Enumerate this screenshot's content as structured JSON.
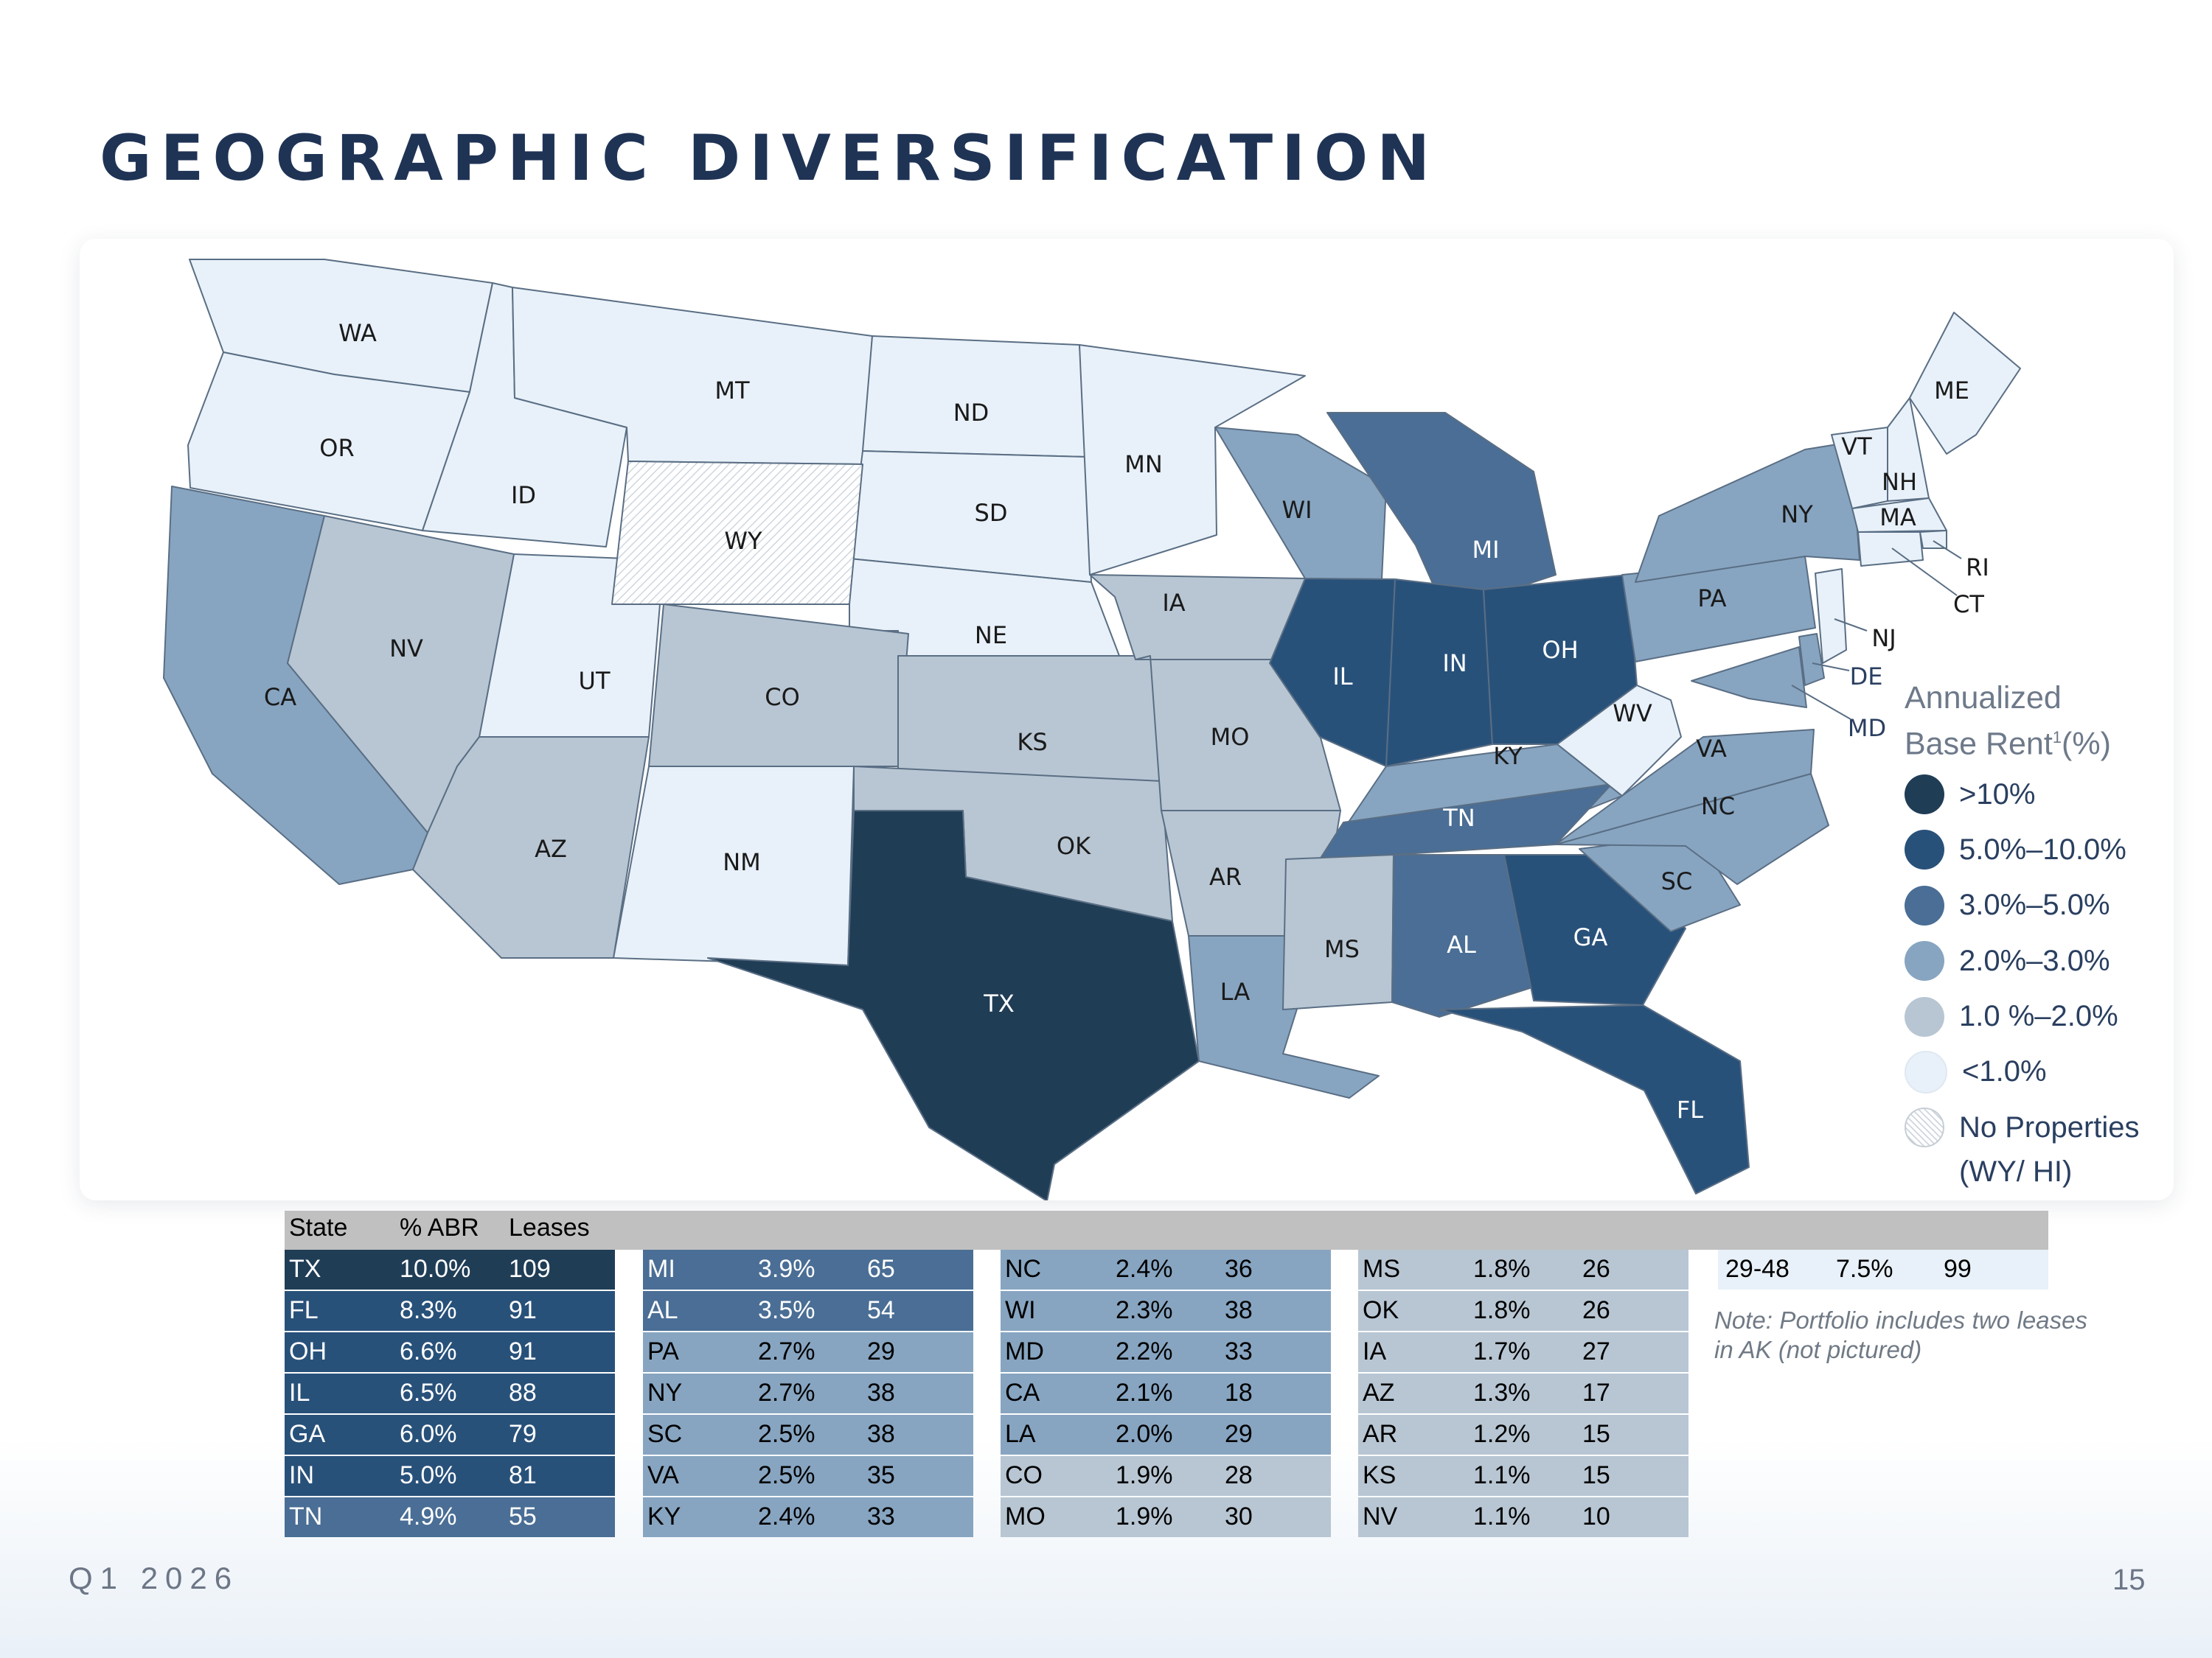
{
  "title": "GEOGRAPHIC DIVERSIFICATION",
  "footer": {
    "quarter": "Q1 2026",
    "page": "15"
  },
  "legend": {
    "title_line1": "Annualized",
    "title_line2": "Base Rent",
    "title_sup": "1",
    "title_unit": "(%)",
    "items": [
      {
        "label": ">10%",
        "color": "#203d56"
      },
      {
        "label": "5.0%–10.0%",
        "color": "#28517a"
      },
      {
        "label": "3.0%–5.0%",
        "color": "#4a6e95"
      },
      {
        "label": "2.0%–3.0%",
        "color": "#87a5c1"
      },
      {
        "label": "1.0 %–2.0%",
        "color": "#b8c6d3"
      },
      {
        "label": "<1.0%",
        "color": "#e8f1f9"
      },
      {
        "label": "No Properties",
        "color": "hatch"
      }
    ],
    "no_props_sub": "(WY/ HI)"
  },
  "states": [
    {
      "code": "WA",
      "tier": 5
    },
    {
      "code": "OR",
      "tier": 5
    },
    {
      "code": "ID",
      "tier": 5
    },
    {
      "code": "MT",
      "tier": 5
    },
    {
      "code": "ND",
      "tier": 5
    },
    {
      "code": "SD",
      "tier": 5
    },
    {
      "code": "MN",
      "tier": 5
    },
    {
      "code": "NE",
      "tier": 5
    },
    {
      "code": "UT",
      "tier": 5
    },
    {
      "code": "NM",
      "tier": 5
    },
    {
      "code": "WY",
      "tier": 6
    },
    {
      "code": "CA",
      "tier": 3
    },
    {
      "code": "NV",
      "tier": 4
    },
    {
      "code": "AZ",
      "tier": 4
    },
    {
      "code": "CO",
      "tier": 4
    },
    {
      "code": "KS",
      "tier": 4
    },
    {
      "code": "OK",
      "tier": 4
    },
    {
      "code": "TX",
      "tier": 0
    },
    {
      "code": "IA",
      "tier": 4
    },
    {
      "code": "MO",
      "tier": 4
    },
    {
      "code": "AR",
      "tier": 4
    },
    {
      "code": "LA",
      "tier": 3
    },
    {
      "code": "WI",
      "tier": 3
    },
    {
      "code": "IL",
      "tier": 1
    },
    {
      "code": "MI",
      "tier": 2
    },
    {
      "code": "IN",
      "tier": 1
    },
    {
      "code": "OH",
      "tier": 1
    },
    {
      "code": "KY",
      "tier": 3
    },
    {
      "code": "TN",
      "tier": 2
    },
    {
      "code": "MS",
      "tier": 4
    },
    {
      "code": "AL",
      "tier": 2
    },
    {
      "code": "GA",
      "tier": 1
    },
    {
      "code": "FL",
      "tier": 1
    },
    {
      "code": "SC",
      "tier": 3
    },
    {
      "code": "NC",
      "tier": 3
    },
    {
      "code": "VA",
      "tier": 3
    },
    {
      "code": "WV",
      "tier": 5
    },
    {
      "code": "PA",
      "tier": 3
    },
    {
      "code": "NY",
      "tier": 3
    },
    {
      "code": "ME",
      "tier": 5
    },
    {
      "code": "VT",
      "tier": 5
    },
    {
      "code": "NH",
      "tier": 5
    },
    {
      "code": "MA",
      "tier": 5
    },
    {
      "code": "RI",
      "tier": 5
    },
    {
      "code": "CT",
      "tier": 5
    },
    {
      "code": "NJ",
      "tier": 5
    },
    {
      "code": "DE",
      "tier": 3
    },
    {
      "code": "MD",
      "tier": 3
    }
  ],
  "table": {
    "headers": [
      "State",
      "% ABR",
      "Leases"
    ],
    "columns": [
      [
        {
          "state": "TX",
          "abr": "10.0%",
          "leases": "109",
          "color": "#203d56",
          "text": "#ffffff"
        },
        {
          "state": "FL",
          "abr": "8.3%",
          "leases": "91",
          "color": "#28517a",
          "text": "#ffffff"
        },
        {
          "state": "OH",
          "abr": "6.6%",
          "leases": "91",
          "color": "#28517a",
          "text": "#ffffff"
        },
        {
          "state": "IL",
          "abr": "6.5%",
          "leases": "88",
          "color": "#28517a",
          "text": "#ffffff"
        },
        {
          "state": "GA",
          "abr": "6.0%",
          "leases": "79",
          "color": "#28517a",
          "text": "#ffffff"
        },
        {
          "state": "IN",
          "abr": "5.0%",
          "leases": "81",
          "color": "#28517a",
          "text": "#ffffff"
        },
        {
          "state": "TN",
          "abr": "4.9%",
          "leases": "55",
          "color": "#4a6e95",
          "text": "#ffffff"
        }
      ],
      [
        {
          "state": "MI",
          "abr": "3.9%",
          "leases": "65",
          "color": "#4a6e95",
          "text": "#ffffff"
        },
        {
          "state": "AL",
          "abr": "3.5%",
          "leases": "54",
          "color": "#4a6e95",
          "text": "#ffffff"
        },
        {
          "state": "PA",
          "abr": "2.7%",
          "leases": "29",
          "color": "#87a5c1",
          "text": "#000000"
        },
        {
          "state": "NY",
          "abr": "2.7%",
          "leases": "38",
          "color": "#87a5c1",
          "text": "#000000"
        },
        {
          "state": "SC",
          "abr": "2.5%",
          "leases": "38",
          "color": "#87a5c1",
          "text": "#000000"
        },
        {
          "state": "VA",
          "abr": "2.5%",
          "leases": "35",
          "color": "#87a5c1",
          "text": "#000000"
        },
        {
          "state": "KY",
          "abr": "2.4%",
          "leases": "33",
          "color": "#87a5c1",
          "text": "#000000"
        }
      ],
      [
        {
          "state": "NC",
          "abr": "2.4%",
          "leases": "36",
          "color": "#87a5c1",
          "text": "#000000"
        },
        {
          "state": "WI",
          "abr": "2.3%",
          "leases": "38",
          "color": "#87a5c1",
          "text": "#000000"
        },
        {
          "state": "MD",
          "abr": "2.2%",
          "leases": "33",
          "color": "#87a5c1",
          "text": "#000000"
        },
        {
          "state": "CA",
          "abr": "2.1%",
          "leases": "18",
          "color": "#87a5c1",
          "text": "#000000"
        },
        {
          "state": "LA",
          "abr": "2.0%",
          "leases": "29",
          "color": "#87a5c1",
          "text": "#000000"
        },
        {
          "state": "CO",
          "abr": "1.9%",
          "leases": "28",
          "color": "#b8c6d3",
          "text": "#000000"
        },
        {
          "state": "MO",
          "abr": "1.9%",
          "leases": "30",
          "color": "#b8c6d3",
          "text": "#000000"
        }
      ],
      [
        {
          "state": "MS",
          "abr": "1.8%",
          "leases": "26",
          "color": "#b8c6d3",
          "text": "#000000"
        },
        {
          "state": "OK",
          "abr": "1.8%",
          "leases": "26",
          "color": "#b8c6d3",
          "text": "#000000"
        },
        {
          "state": "IA",
          "abr": "1.7%",
          "leases": "27",
          "color": "#b8c6d3",
          "text": "#000000"
        },
        {
          "state": "AZ",
          "abr": "1.3%",
          "leases": "17",
          "color": "#b8c6d3",
          "text": "#000000"
        },
        {
          "state": "AR",
          "abr": "1.2%",
          "leases": "15",
          "color": "#b8c6d3",
          "text": "#000000"
        },
        {
          "state": "KS",
          "abr": "1.1%",
          "leases": "15",
          "color": "#b8c6d3",
          "text": "#000000"
        },
        {
          "state": "NV",
          "abr": "1.1%",
          "leases": "10",
          "color": "#b8c6d3",
          "text": "#000000"
        }
      ]
    ],
    "extra_row": {
      "state": "29-48",
      "abr": "7.5%",
      "leases": "99"
    }
  },
  "note": "Note: Portfolio includes two leases in AK (not pictured)"
}
